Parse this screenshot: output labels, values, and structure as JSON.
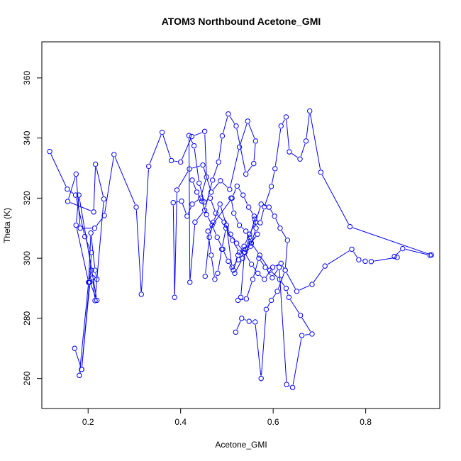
{
  "chart_data": {
    "type": "line",
    "title": "ATOM3 Northbound Acetone_GMI",
    "xlabel": "Acetone_GMI",
    "ylabel": "Theta (K)",
    "xlim": [
      0.1,
      0.96
    ],
    "ylim": [
      250,
      372
    ],
    "xticks": [
      0.2,
      0.4,
      0.6,
      0.8
    ],
    "xtick_labels": [
      "0.2",
      "0.4",
      "0.6",
      "0.8"
    ],
    "yticks": [
      260,
      280,
      300,
      320,
      340,
      360
    ],
    "ytick_labels": [
      "260",
      "280",
      "300",
      "320",
      "340",
      "360"
    ],
    "grid": false,
    "style": "both (points connected by lines)",
    "series_color": "#0000ff",
    "series": [
      {
        "x": [
          0.117,
          0.155,
          0.173,
          0.193,
          0.207,
          0.203,
          0.186,
          0.181,
          0.201,
          0.207,
          0.21,
          0.215,
          0.234,
          0.216,
          0.212,
          0.156,
          0.174,
          0.183,
          0.214,
          0.235,
          0.256,
          0.304,
          0.315,
          0.331,
          0.36,
          0.38,
          0.4,
          0.424,
          0.452,
          0.456,
          0.443,
          0.425,
          0.414,
          0.402,
          0.384,
          0.387,
          0.392,
          0.419,
          0.448,
          0.466,
          0.486,
          0.506,
          0.527,
          0.545,
          0.562,
          0.558,
          0.541,
          0.52,
          0.503,
          0.49,
          0.482,
          0.469,
          0.452,
          0.431,
          0.42,
          0.418,
          0.429,
          0.44,
          0.451,
          0.464,
          0.476,
          0.494,
          0.508,
          0.521,
          0.538,
          0.553,
          0.567,
          0.581,
          0.599,
          0.617,
          0.626,
          0.631,
          0.615,
          0.603,
          0.591,
          0.574,
          0.562,
          0.549,
          0.537,
          0.524,
          0.514,
          0.503,
          0.491,
          0.479,
          0.468,
          0.456,
          0.446,
          0.435,
          0.425
        ],
        "y": [
          335.5,
          323.0,
          321.0,
          307.2,
          301.9,
          292.0,
          263.0,
          261.0,
          292.0,
          296.0,
          293.5,
          285.9,
          319.7,
          331.3,
          315.4,
          318.9,
          328.0,
          310.0,
          310.0,
          314.2,
          334.5,
          317.0,
          288.0,
          330.6,
          341.9,
          332.5,
          332.0,
          340.5,
          342.2,
          327.0,
          320.0,
          318.0,
          314.0,
          319.0,
          318.5,
          287.0,
          322.7,
          329.7,
          331.0,
          322.0,
          325.8,
          322.9,
          337.0,
          345.6,
          339.0,
          331.5,
          328.0,
          344.0,
          348.0,
          340.7,
          332.0,
          326.0,
          316.0,
          312.0,
          292.0,
          340.8,
          337.4,
          325.0,
          318.7,
          320.0,
          315.0,
          312.0,
          308.0,
          305.0,
          302.0,
          298.0,
          295.0,
          293.0,
          297.0,
          298.3,
          296.0,
          306.0,
          310.0,
          314.0,
          317.0,
          318.0,
          312.0,
          308.0,
          304.0,
          301.0,
          296.0,
          299.0,
          303.0,
          307.0,
          311.0,
          314.5,
          319.0,
          322.0,
          326.0
        ]
      },
      {
        "x": [
          0.171,
          0.186,
          0.204,
          0.219,
          0.18,
          0.174,
          0.201,
          0.206,
          0.215,
          0.219
        ],
        "y": [
          270.0,
          263.0,
          292.0,
          286.0,
          321.0,
          311.0,
          292.0,
          308.4,
          296.0,
          293.0
        ]
      },
      {
        "x": [
          0.519,
          0.532,
          0.548,
          0.561,
          0.574,
          0.585,
          0.596,
          0.609,
          0.626,
          0.651,
          0.684,
          0.712,
          0.77,
          0.785,
          0.799,
          0.812,
          0.868,
          0.862,
          0.88,
          0.939,
          0.942,
          0.766,
          0.703,
          0.679,
          0.671,
          0.658,
          0.635,
          0.628,
          0.617,
          0.604,
          0.596,
          0.581,
          0.572,
          0.56,
          0.549,
          0.538,
          0.53,
          0.524,
          0.542,
          0.556,
          0.569,
          0.583,
          0.598,
          0.613,
          0.629,
          0.642,
          0.662,
          0.684,
          0.659,
          0.634,
          0.628,
          0.614,
          0.593,
          0.571,
          0.553,
          0.541,
          0.527,
          0.515,
          0.509
        ],
        "y": [
          275.4,
          280.0,
          279.0,
          278.8,
          260.0,
          283.0,
          286.0,
          289.0,
          296.0,
          289.0,
          291.3,
          297.4,
          303.0,
          299.5,
          299.0,
          298.9,
          300.3,
          300.6,
          303.2,
          301.0,
          301.1,
          310.5,
          328.6,
          349.0,
          339.0,
          333.0,
          335.4,
          347.0,
          344.0,
          329.8,
          323.9,
          317.1,
          311.8,
          313.0,
          307.0,
          302.0,
          287.0,
          286.0,
          286.5,
          293.0,
          300.0,
          297.0,
          293.5,
          297.0,
          258.0,
          257.0,
          274.3,
          274.8,
          281.0,
          287.0,
          290.0,
          293.0,
          296.0,
          301.0,
          305.0,
          309.0,
          311.0,
          315.0,
          320.0
        ]
      },
      {
        "x": [
          0.453,
          0.462,
          0.471,
          0.485,
          0.499,
          0.511,
          0.525,
          0.539,
          0.552,
          0.566,
          0.54,
          0.527,
          0.512,
          0.498,
          0.489,
          0.48,
          0.474,
          0.466,
          0.459,
          0.511,
          0.522,
          0.535,
          0.547,
          0.559,
          0.563,
          0.551,
          0.534,
          0.517
        ],
        "y": [
          294.0,
          307.0,
          312.0,
          318.0,
          311.0,
          297.0,
          299.5,
          302.0,
          305.0,
          308.0,
          303.0,
          302.0,
          306.0,
          310.0,
          303.0,
          295.0,
          293.0,
          301.0,
          309.0,
          320.0,
          324.0,
          321.0,
          317.0,
          314.0,
          310.0,
          304.0,
          300.0,
          295.0
        ]
      }
    ]
  }
}
